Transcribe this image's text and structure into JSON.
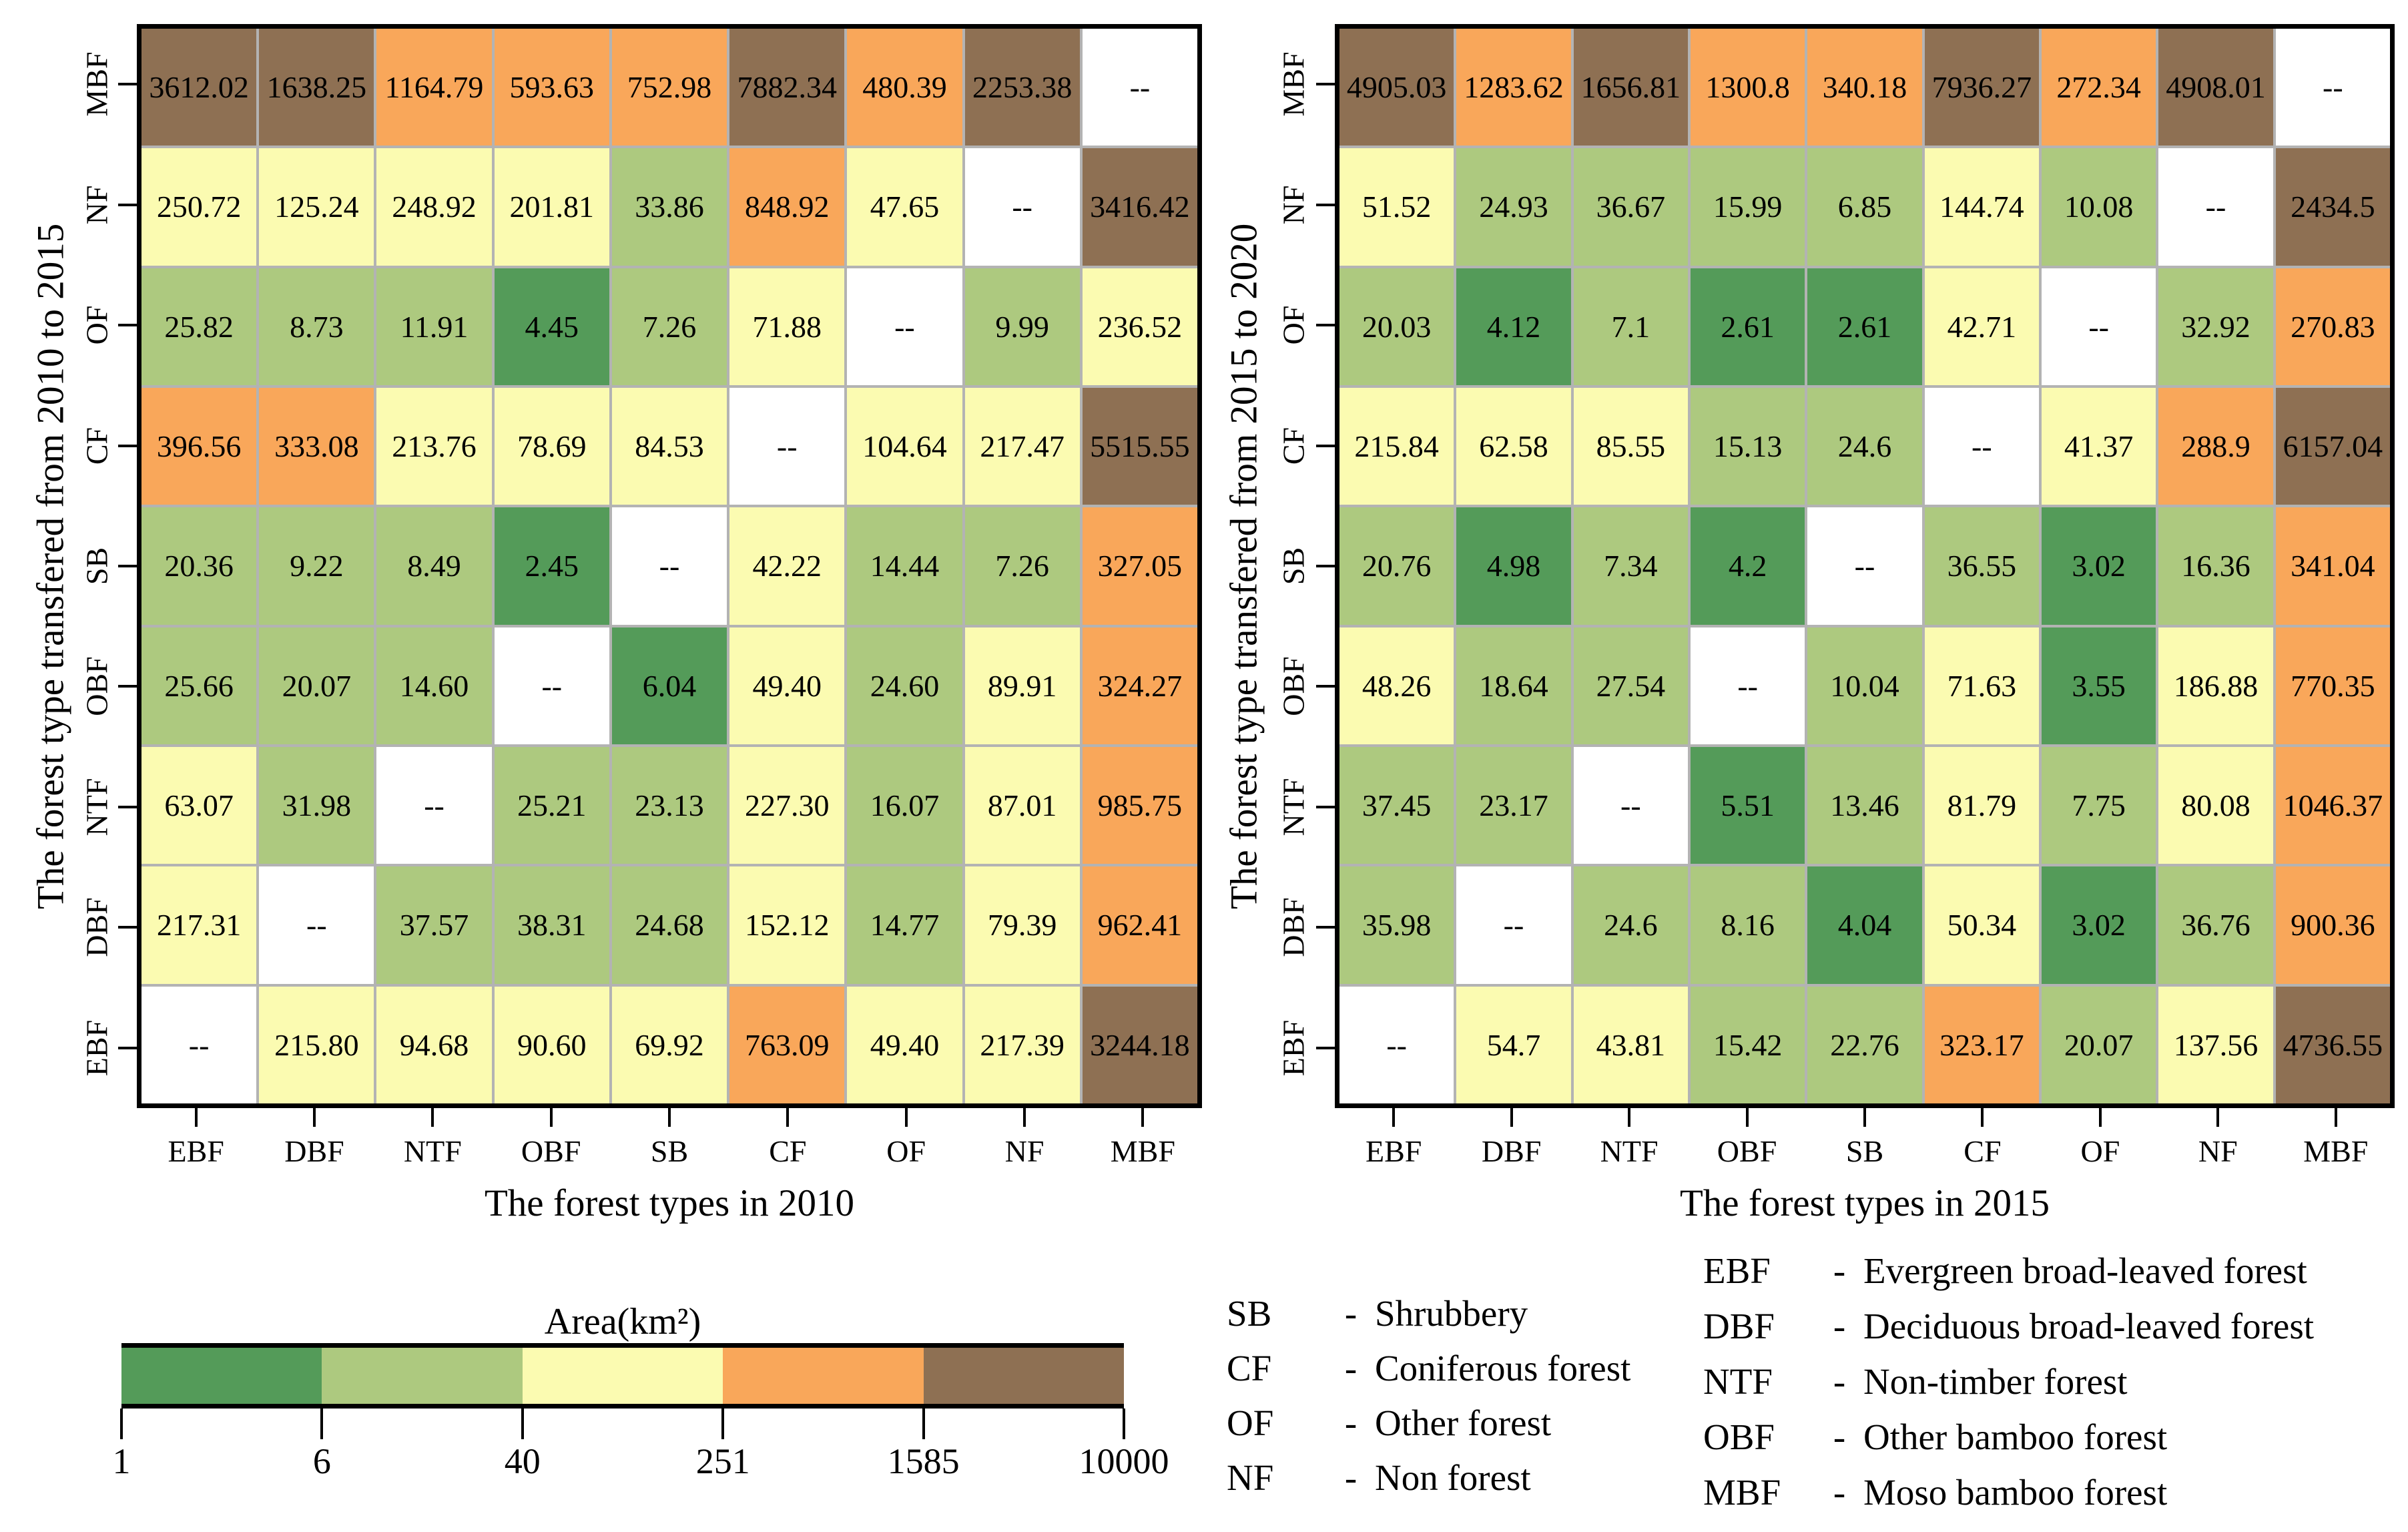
{
  "chart_data": [
    {
      "type": "heatmap",
      "xlabel": "The forest types in 2010",
      "ylabel": "The forest type transfered from 2010 to 2015",
      "x_categories": [
        "EBF",
        "DBF",
        "NTF",
        "OBF",
        "SB",
        "CF",
        "OF",
        "NF",
        "MBF"
      ],
      "y_categories_top_to_bottom": [
        "MBF",
        "NF",
        "OF",
        "CF",
        "SB",
        "OBF",
        "NTF",
        "DBF",
        "EBF"
      ],
      "missing_marker": "--",
      "cell_labels": [
        [
          "3612.02",
          "1638.25",
          "1164.79",
          "593.63",
          "752.98",
          "7882.34",
          "480.39",
          "2253.38",
          "--"
        ],
        [
          "250.72",
          "125.24",
          "248.92",
          "201.81",
          "33.86",
          "848.92",
          "47.65",
          "--",
          "3416.42"
        ],
        [
          "25.82",
          "8.73",
          "11.91",
          "4.45",
          "7.26",
          "71.88",
          "--",
          "9.99",
          "236.52"
        ],
        [
          "396.56",
          "333.08",
          "213.76",
          "78.69",
          "84.53",
          "--",
          "104.64",
          "217.47",
          "5515.55"
        ],
        [
          "20.36",
          "9.22",
          "8.49",
          "2.45",
          "--",
          "42.22",
          "14.44",
          "7.26",
          "327.05"
        ],
        [
          "25.66",
          "20.07",
          "14.60",
          "--",
          "6.04",
          "49.40",
          "24.60",
          "89.91",
          "324.27"
        ],
        [
          "63.07",
          "31.98",
          "--",
          "25.21",
          "23.13",
          "227.30",
          "16.07",
          "87.01",
          "985.75"
        ],
        [
          "217.31",
          "--",
          "37.57",
          "38.31",
          "24.68",
          "152.12",
          "14.77",
          "79.39",
          "962.41"
        ],
        [
          "--",
          "215.80",
          "94.68",
          "90.60",
          "69.92",
          "763.09",
          "49.40",
          "217.39",
          "3244.18"
        ]
      ]
    },
    {
      "type": "heatmap",
      "xlabel": "The forest types in 2015",
      "ylabel": "The forest type transfered from 2015 to 2020",
      "x_categories": [
        "EBF",
        "DBF",
        "NTF",
        "OBF",
        "SB",
        "CF",
        "OF",
        "NF",
        "MBF"
      ],
      "y_categories_top_to_bottom": [
        "MBF",
        "NF",
        "OF",
        "CF",
        "SB",
        "OBF",
        "NTF",
        "DBF",
        "EBF"
      ],
      "missing_marker": "--",
      "cell_labels": [
        [
          "4905.03",
          "1283.62",
          "1656.81",
          "1300.8",
          "340.18",
          "7936.27",
          "272.34",
          "4908.01",
          "--"
        ],
        [
          "51.52",
          "24.93",
          "36.67",
          "15.99",
          "6.85",
          "144.74",
          "10.08",
          "--",
          "2434.5"
        ],
        [
          "20.03",
          "4.12",
          "7.1",
          "2.61",
          "2.61",
          "42.71",
          "--",
          "32.92",
          "270.83"
        ],
        [
          "215.84",
          "62.58",
          "85.55",
          "15.13",
          "24.6",
          "--",
          "41.37",
          "288.9",
          "6157.04"
        ],
        [
          "20.76",
          "4.98",
          "7.34",
          "4.2",
          "--",
          "36.55",
          "3.02",
          "16.36",
          "341.04"
        ],
        [
          "48.26",
          "18.64",
          "27.54",
          "--",
          "10.04",
          "71.63",
          "3.55",
          "186.88",
          "770.35"
        ],
        [
          "37.45",
          "23.17",
          "--",
          "5.51",
          "13.46",
          "81.79",
          "7.75",
          "80.08",
          "1046.37"
        ],
        [
          "35.98",
          "--",
          "24.6",
          "8.16",
          "4.04",
          "50.34",
          "3.02",
          "36.76",
          "900.36"
        ],
        [
          "--",
          "54.7",
          "43.81",
          "15.42",
          "22.76",
          "323.17",
          "20.07",
          "137.56",
          "4736.55"
        ]
      ]
    }
  ],
  "colorbar": {
    "title": "Area(km²)",
    "tick_labels": [
      "1",
      "6",
      "40",
      "251",
      "1585",
      "10000"
    ],
    "tick_values": [
      1,
      6,
      40,
      251,
      1585,
      10000
    ],
    "bin_colors": [
      "#549b59",
      "#adc97f",
      "#fbfbb1",
      "#f9a75a",
      "#8e7053"
    ],
    "bin_thresholds": [
      6.31,
      39.81,
      251.19,
      1584.9
    ],
    "empty_color": "#ffffff",
    "grid_line_color": "#b3b3b3"
  },
  "legend": {
    "separator": "-",
    "col1": [
      {
        "abbr": "SB",
        "name": "Shrubbery"
      },
      {
        "abbr": "CF",
        "name": "Coniferous forest"
      },
      {
        "abbr": "OF",
        "name": "Other forest"
      },
      {
        "abbr": "NF",
        "name": "Non forest"
      }
    ],
    "col2": [
      {
        "abbr": "EBF",
        "name": "Evergreen broad-leaved forest"
      },
      {
        "abbr": "DBF",
        "name": "Deciduous broad-leaved forest"
      },
      {
        "abbr": "NTF",
        "name": "Non-timber forest"
      },
      {
        "abbr": "OBF",
        "name": "Other bamboo forest"
      },
      {
        "abbr": "MBF",
        "name": "Moso bamboo forest"
      }
    ]
  }
}
